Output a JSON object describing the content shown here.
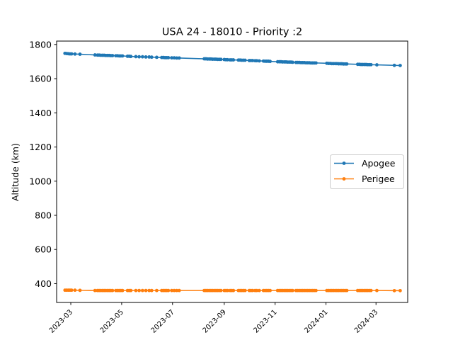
{
  "chart_data": {
    "type": "line",
    "title": "USA 24 - 18010 - Priority :2",
    "xlabel": "",
    "ylabel": "Altitude (km)",
    "x_axis_type": "date",
    "xlim": [
      "2023-02-12",
      "2024-04-08"
    ],
    "ylim": [
      290,
      1820
    ],
    "x_ticks": [
      "2023-03",
      "2023-05",
      "2023-07",
      "2023-09",
      "2023-11",
      "2024-01",
      "2024-03"
    ],
    "y_ticks": [
      400,
      600,
      800,
      1000,
      1200,
      1400,
      1600,
      1800
    ],
    "grid": false,
    "legend_position": "center-right",
    "series": [
      {
        "name": "Apogee",
        "color": "#1f77b4",
        "marker": "circle",
        "points": [
          [
            "2023-02-22",
            1748
          ],
          [
            "2023-02-24",
            1747
          ],
          [
            "2023-02-26",
            1746
          ],
          [
            "2023-02-28",
            1745
          ],
          [
            "2023-03-02",
            1745
          ],
          [
            "2023-03-06",
            1744
          ],
          [
            "2023-03-12",
            1743
          ],
          [
            "2023-03-30",
            1739
          ],
          [
            "2023-04-02",
            1738
          ],
          [
            "2023-04-04",
            1738
          ],
          [
            "2023-04-06",
            1737
          ],
          [
            "2023-04-08",
            1737
          ],
          [
            "2023-04-10",
            1737
          ],
          [
            "2023-04-12",
            1736
          ],
          [
            "2023-04-14",
            1736
          ],
          [
            "2023-04-16",
            1736
          ],
          [
            "2023-04-18",
            1735
          ],
          [
            "2023-04-20",
            1735
          ],
          [
            "2023-04-24",
            1734
          ],
          [
            "2023-04-26",
            1734
          ],
          [
            "2023-04-28",
            1733
          ],
          [
            "2023-04-30",
            1733
          ],
          [
            "2023-05-02",
            1733
          ],
          [
            "2023-05-08",
            1731
          ],
          [
            "2023-05-10",
            1731
          ],
          [
            "2023-05-12",
            1730
          ],
          [
            "2023-05-18",
            1729
          ],
          [
            "2023-05-22",
            1728
          ],
          [
            "2023-05-26",
            1728
          ],
          [
            "2023-05-30",
            1727
          ],
          [
            "2023-06-03",
            1727
          ],
          [
            "2023-06-06",
            1726
          ],
          [
            "2023-06-12",
            1725
          ],
          [
            "2023-06-18",
            1724
          ],
          [
            "2023-06-20",
            1724
          ],
          [
            "2023-06-22",
            1723
          ],
          [
            "2023-06-24",
            1723
          ],
          [
            "2023-06-26",
            1723
          ],
          [
            "2023-06-30",
            1722
          ],
          [
            "2023-07-03",
            1722
          ],
          [
            "2023-07-06",
            1721
          ],
          [
            "2023-07-09",
            1721
          ],
          [
            "2023-08-08",
            1716
          ],
          [
            "2023-08-10",
            1716
          ],
          [
            "2023-08-12",
            1715
          ],
          [
            "2023-08-14",
            1715
          ],
          [
            "2023-08-16",
            1715
          ],
          [
            "2023-08-18",
            1714
          ],
          [
            "2023-08-20",
            1714
          ],
          [
            "2023-08-22",
            1714
          ],
          [
            "2023-08-24",
            1713
          ],
          [
            "2023-08-26",
            1713
          ],
          [
            "2023-08-28",
            1713
          ],
          [
            "2023-09-01",
            1712
          ],
          [
            "2023-09-03",
            1711
          ],
          [
            "2023-09-05",
            1711
          ],
          [
            "2023-09-08",
            1710
          ],
          [
            "2023-09-10",
            1710
          ],
          [
            "2023-09-12",
            1710
          ],
          [
            "2023-09-18",
            1709
          ],
          [
            "2023-09-20",
            1709
          ],
          [
            "2023-09-22",
            1708
          ],
          [
            "2023-09-24",
            1708
          ],
          [
            "2023-09-26",
            1708
          ],
          [
            "2023-10-01",
            1706
          ],
          [
            "2023-10-03",
            1706
          ],
          [
            "2023-10-05",
            1706
          ],
          [
            "2023-10-08",
            1705
          ],
          [
            "2023-10-10",
            1705
          ],
          [
            "2023-10-13",
            1704
          ],
          [
            "2023-10-18",
            1703
          ],
          [
            "2023-10-20",
            1702
          ],
          [
            "2023-10-22",
            1702
          ],
          [
            "2023-10-24",
            1702
          ],
          [
            "2023-10-26",
            1701
          ],
          [
            "2023-11-04",
            1699
          ],
          [
            "2023-11-06",
            1699
          ],
          [
            "2023-11-08",
            1699
          ],
          [
            "2023-11-10",
            1698
          ],
          [
            "2023-11-12",
            1698
          ],
          [
            "2023-11-14",
            1698
          ],
          [
            "2023-11-16",
            1697
          ],
          [
            "2023-11-18",
            1697
          ],
          [
            "2023-11-20",
            1697
          ],
          [
            "2023-11-22",
            1696
          ],
          [
            "2023-11-26",
            1695
          ],
          [
            "2023-11-28",
            1695
          ],
          [
            "2023-11-30",
            1695
          ],
          [
            "2023-12-02",
            1694
          ],
          [
            "2023-12-04",
            1694
          ],
          [
            "2023-12-06",
            1694
          ],
          [
            "2023-12-08",
            1693
          ],
          [
            "2023-12-10",
            1693
          ],
          [
            "2023-12-12",
            1693
          ],
          [
            "2023-12-14",
            1692
          ],
          [
            "2023-12-16",
            1692
          ],
          [
            "2023-12-18",
            1692
          ],
          [
            "2023-12-20",
            1692
          ],
          [
            "2024-01-02",
            1690
          ],
          [
            "2024-01-04",
            1689
          ],
          [
            "2024-01-06",
            1689
          ],
          [
            "2024-01-08",
            1688
          ],
          [
            "2024-01-10",
            1688
          ],
          [
            "2024-01-12",
            1688
          ],
          [
            "2024-01-14",
            1688
          ],
          [
            "2024-01-16",
            1687
          ],
          [
            "2024-01-18",
            1687
          ],
          [
            "2024-01-20",
            1687
          ],
          [
            "2024-01-22",
            1686
          ],
          [
            "2024-01-24",
            1686
          ],
          [
            "2024-01-26",
            1686
          ],
          [
            "2024-02-08",
            1684
          ],
          [
            "2024-02-10",
            1684
          ],
          [
            "2024-02-12",
            1683
          ],
          [
            "2024-02-14",
            1683
          ],
          [
            "2024-02-16",
            1683
          ],
          [
            "2024-02-18",
            1683
          ],
          [
            "2024-02-20",
            1682
          ],
          [
            "2024-02-22",
            1682
          ],
          [
            "2024-02-24",
            1682
          ],
          [
            "2024-03-02",
            1681
          ],
          [
            "2024-03-23",
            1678
          ],
          [
            "2024-03-30",
            1677
          ]
        ]
      },
      {
        "name": "Perigee",
        "color": "#ff7f0e",
        "marker": "circle",
        "points": [
          [
            "2023-02-22",
            362
          ],
          [
            "2023-02-24",
            362
          ],
          [
            "2023-02-26",
            362
          ],
          [
            "2023-02-28",
            362
          ],
          [
            "2023-03-02",
            362
          ],
          [
            "2023-03-06",
            362
          ],
          [
            "2023-03-12",
            361
          ],
          [
            "2023-03-30",
            360
          ],
          [
            "2023-04-02",
            360
          ],
          [
            "2023-04-04",
            360
          ],
          [
            "2023-04-06",
            360
          ],
          [
            "2023-04-08",
            360
          ],
          [
            "2023-04-10",
            360
          ],
          [
            "2023-04-12",
            360
          ],
          [
            "2023-04-14",
            360
          ],
          [
            "2023-04-16",
            360
          ],
          [
            "2023-04-18",
            360
          ],
          [
            "2023-04-20",
            360
          ],
          [
            "2023-04-24",
            360
          ],
          [
            "2023-04-26",
            360
          ],
          [
            "2023-04-28",
            360
          ],
          [
            "2023-04-30",
            360
          ],
          [
            "2023-05-02",
            360
          ],
          [
            "2023-05-08",
            360
          ],
          [
            "2023-05-10",
            360
          ],
          [
            "2023-05-12",
            360
          ],
          [
            "2023-05-18",
            360
          ],
          [
            "2023-05-22",
            360
          ],
          [
            "2023-05-26",
            360
          ],
          [
            "2023-05-30",
            360
          ],
          [
            "2023-06-03",
            360
          ],
          [
            "2023-06-06",
            360
          ],
          [
            "2023-06-12",
            360
          ],
          [
            "2023-06-18",
            360
          ],
          [
            "2023-06-20",
            360
          ],
          [
            "2023-06-22",
            360
          ],
          [
            "2023-06-24",
            360
          ],
          [
            "2023-06-26",
            360
          ],
          [
            "2023-06-30",
            360
          ],
          [
            "2023-07-03",
            360
          ],
          [
            "2023-07-06",
            360
          ],
          [
            "2023-07-09",
            360
          ],
          [
            "2023-08-08",
            360
          ],
          [
            "2023-08-10",
            360
          ],
          [
            "2023-08-12",
            360
          ],
          [
            "2023-08-14",
            360
          ],
          [
            "2023-08-16",
            360
          ],
          [
            "2023-08-18",
            360
          ],
          [
            "2023-08-20",
            360
          ],
          [
            "2023-08-22",
            360
          ],
          [
            "2023-08-24",
            360
          ],
          [
            "2023-08-26",
            360
          ],
          [
            "2023-08-28",
            360
          ],
          [
            "2023-09-01",
            360
          ],
          [
            "2023-09-03",
            360
          ],
          [
            "2023-09-05",
            360
          ],
          [
            "2023-09-08",
            360
          ],
          [
            "2023-09-10",
            360
          ],
          [
            "2023-09-12",
            360
          ],
          [
            "2023-09-18",
            360
          ],
          [
            "2023-09-20",
            360
          ],
          [
            "2023-09-22",
            360
          ],
          [
            "2023-09-24",
            360
          ],
          [
            "2023-09-26",
            360
          ],
          [
            "2023-10-01",
            360
          ],
          [
            "2023-10-03",
            360
          ],
          [
            "2023-10-05",
            360
          ],
          [
            "2023-10-08",
            360
          ],
          [
            "2023-10-10",
            360
          ],
          [
            "2023-10-13",
            360
          ],
          [
            "2023-10-18",
            360
          ],
          [
            "2023-10-20",
            360
          ],
          [
            "2023-10-22",
            360
          ],
          [
            "2023-10-24",
            360
          ],
          [
            "2023-10-26",
            360
          ],
          [
            "2023-11-04",
            360
          ],
          [
            "2023-11-06",
            360
          ],
          [
            "2023-11-08",
            360
          ],
          [
            "2023-11-10",
            360
          ],
          [
            "2023-11-12",
            360
          ],
          [
            "2023-11-14",
            360
          ],
          [
            "2023-11-16",
            360
          ],
          [
            "2023-11-18",
            360
          ],
          [
            "2023-11-20",
            360
          ],
          [
            "2023-11-22",
            360
          ],
          [
            "2023-11-26",
            360
          ],
          [
            "2023-11-28",
            360
          ],
          [
            "2023-11-30",
            360
          ],
          [
            "2023-12-02",
            360
          ],
          [
            "2023-12-04",
            360
          ],
          [
            "2023-12-06",
            360
          ],
          [
            "2023-12-08",
            360
          ],
          [
            "2023-12-10",
            360
          ],
          [
            "2023-12-12",
            360
          ],
          [
            "2023-12-14",
            360
          ],
          [
            "2023-12-16",
            360
          ],
          [
            "2023-12-18",
            360
          ],
          [
            "2023-12-20",
            360
          ],
          [
            "2024-01-02",
            360
          ],
          [
            "2024-01-04",
            360
          ],
          [
            "2024-01-06",
            360
          ],
          [
            "2024-01-08",
            360
          ],
          [
            "2024-01-10",
            360
          ],
          [
            "2024-01-12",
            360
          ],
          [
            "2024-01-14",
            360
          ],
          [
            "2024-01-16",
            360
          ],
          [
            "2024-01-18",
            360
          ],
          [
            "2024-01-20",
            360
          ],
          [
            "2024-01-22",
            360
          ],
          [
            "2024-01-24",
            360
          ],
          [
            "2024-01-26",
            360
          ],
          [
            "2024-02-08",
            360
          ],
          [
            "2024-02-10",
            360
          ],
          [
            "2024-02-12",
            360
          ],
          [
            "2024-02-14",
            360
          ],
          [
            "2024-02-16",
            360
          ],
          [
            "2024-02-18",
            360
          ],
          [
            "2024-02-20",
            360
          ],
          [
            "2024-02-22",
            360
          ],
          [
            "2024-02-24",
            360
          ],
          [
            "2024-03-02",
            360
          ],
          [
            "2024-03-23",
            359
          ],
          [
            "2024-03-30",
            359
          ]
        ]
      }
    ]
  }
}
